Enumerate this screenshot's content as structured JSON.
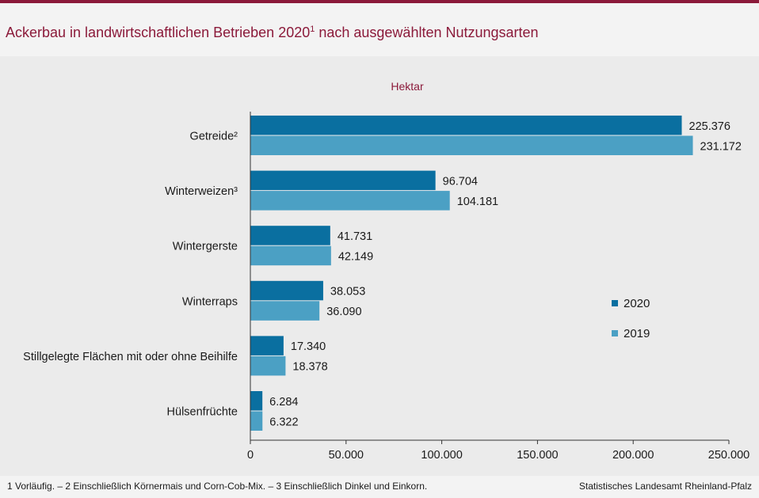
{
  "title": {
    "main": "Ackerbau in landwirtschaftlichen Betrieben 2020",
    "sup": "1",
    "rest": " nach ausgewählten Nutzungsarten"
  },
  "footer": {
    "footnote": "1 Vorläufig.  – 2 Einschließlich Körnermais  und Corn-Cob-Mix.   – 3 Einschließlich Dinkel  und Einkorn.",
    "source": "Statistisches Landesamt  Rheinland-Pfalz"
  },
  "chart_data": {
    "type": "bar",
    "orientation": "horizontal",
    "unit_label": "Hektar",
    "categories": [
      "Getreide²",
      "Winterweizen³",
      "Wintergerste",
      "Winterraps",
      "Stillgelegte Flächen mit oder ohne Beihilfe",
      "Hülsenfrüchte"
    ],
    "series": [
      {
        "name": "2020",
        "color": "#0a6fa0",
        "values": [
          225376,
          96704,
          41731,
          38053,
          17340,
          6284
        ],
        "labels": [
          "225.376",
          "96.704",
          "41.731",
          "38.053",
          "17.340",
          "6.284"
        ]
      },
      {
        "name": "2019",
        "color": "#4ba0c4",
        "values": [
          231172,
          104181,
          42149,
          36090,
          18378,
          6322
        ],
        "labels": [
          "231.172",
          "104.181",
          "42.149",
          "36.090",
          "18.378",
          "6.322"
        ]
      }
    ],
    "xlim": [
      0,
      250000
    ],
    "xticks": [
      0,
      50000,
      100000,
      150000,
      200000,
      250000
    ],
    "xtick_labels": [
      "0",
      "50.000",
      "100.000",
      "150.000",
      "200.000",
      "250.000"
    ],
    "grid": false,
    "legend_position": "right"
  }
}
